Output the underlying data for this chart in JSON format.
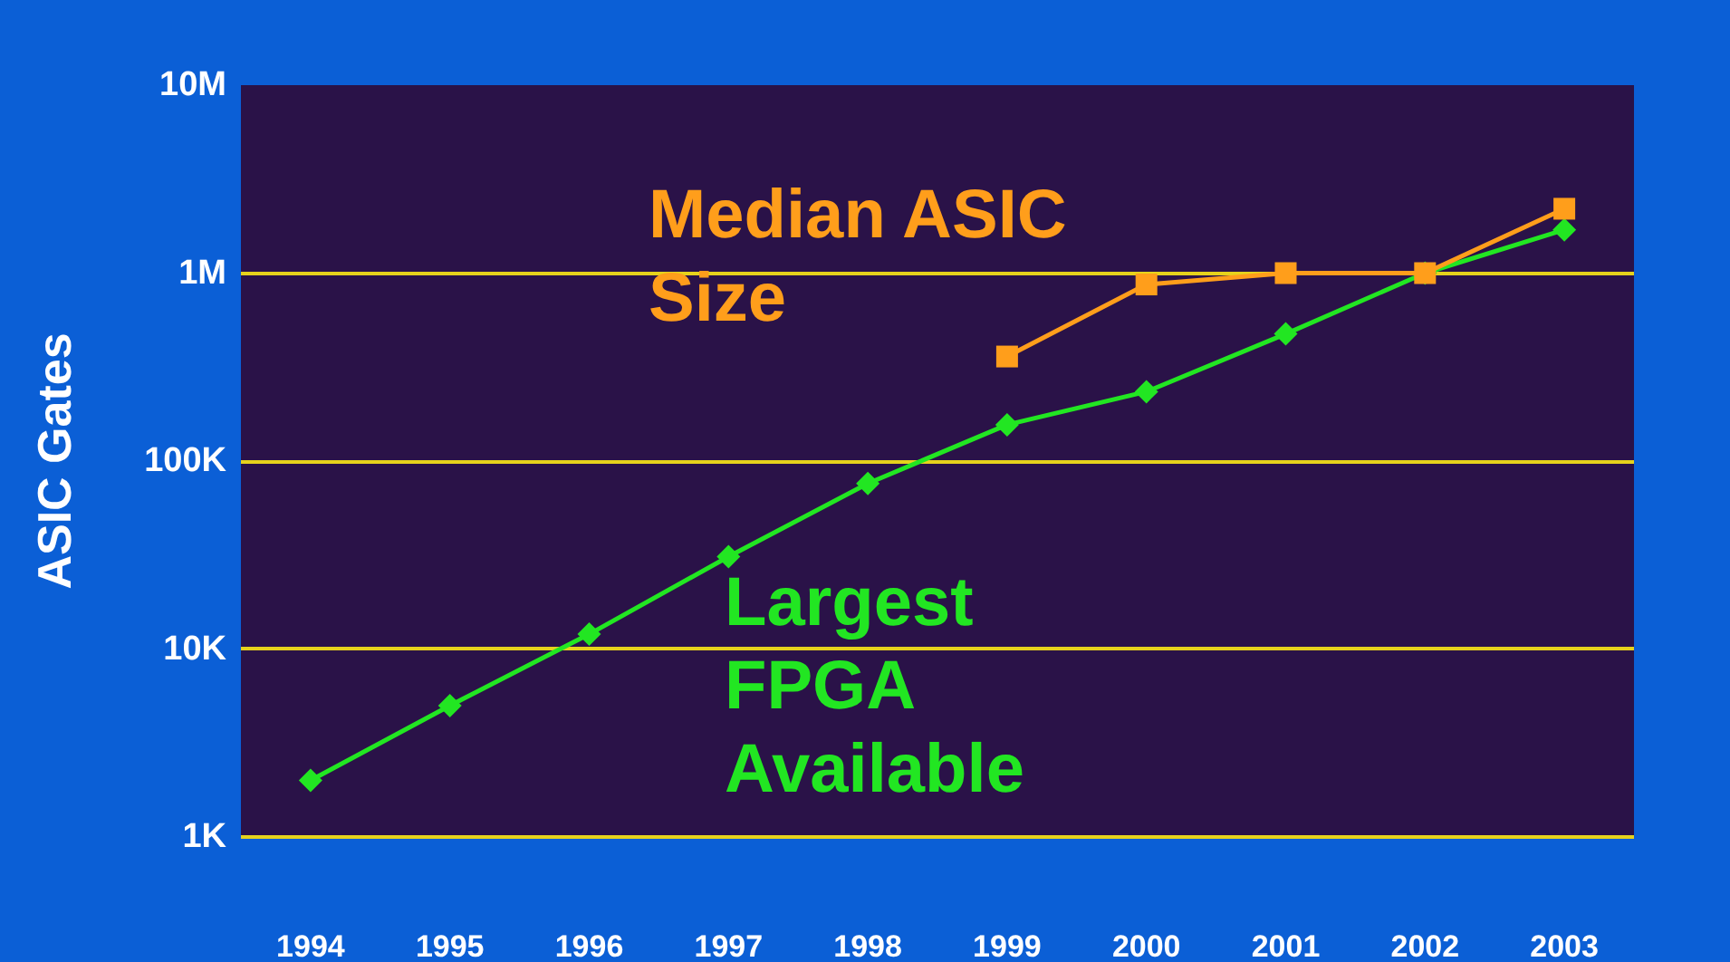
{
  "chart_data": {
    "type": "line",
    "ylabel": "ASIC Gates",
    "categories": [
      "1994",
      "1995",
      "1996",
      "1997",
      "1998",
      "1999",
      "2000",
      "2001",
      "2002",
      "2003"
    ],
    "series": [
      {
        "name": "Median ASIC Size",
        "color": "#ff9e1b",
        "marker": "square",
        "values": [
          null,
          null,
          null,
          null,
          null,
          360000,
          870000,
          1000000,
          1000000,
          2200000
        ]
      },
      {
        "name": "Largest FPGA Available",
        "color": "#22e622",
        "marker": "diamond",
        "values": [
          2000,
          5000,
          12000,
          31000,
          76000,
          156000,
          234000,
          475000,
          1000000,
          1700000
        ]
      }
    ],
    "log": true,
    "ylim": [
      1000,
      10000000
    ],
    "yticks": [
      {
        "value": 1000,
        "label": "1K"
      },
      {
        "value": 10000,
        "label": "10K"
      },
      {
        "value": 100000,
        "label": "100K"
      },
      {
        "value": 1000000,
        "label": "1M"
      },
      {
        "value": 10000000,
        "label": "10M"
      }
    ],
    "grid": "y",
    "legend": false
  }
}
